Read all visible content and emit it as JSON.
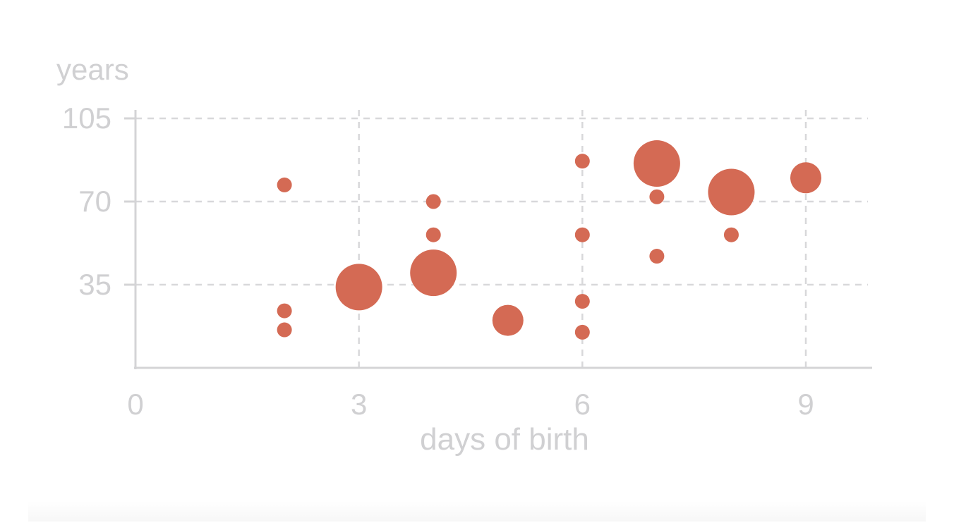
{
  "chart_data": {
    "type": "scatter",
    "title": "",
    "xlabel": "days of birth",
    "ylabel": "years",
    "xlim": [
      0,
      9.9
    ],
    "ylim": [
      0,
      105
    ],
    "x_ticks": [
      "0",
      "3",
      "6",
      "9"
    ],
    "y_ticks": [
      "35",
      "70",
      "105"
    ],
    "grid": true,
    "grid_style": "dashed",
    "legend": "none",
    "point_color": "#D46A54",
    "axis_color": "#D4D4D6",
    "label_color": "#D0D0D2",
    "series": [
      {
        "points": [
          {
            "x": 2,
            "y": 77,
            "size": 1
          },
          {
            "x": 2,
            "y": 24,
            "size": 1
          },
          {
            "x": 2,
            "y": 16,
            "size": 1
          },
          {
            "x": 3,
            "y": 34,
            "size": 4
          },
          {
            "x": 4,
            "y": 70,
            "size": 1
          },
          {
            "x": 4,
            "y": 56,
            "size": 1
          },
          {
            "x": 4,
            "y": 40,
            "size": 4
          },
          {
            "x": 5,
            "y": 20,
            "size": 2
          },
          {
            "x": 6,
            "y": 87,
            "size": 1
          },
          {
            "x": 6,
            "y": 56,
            "size": 1
          },
          {
            "x": 6,
            "y": 28,
            "size": 1
          },
          {
            "x": 6,
            "y": 15,
            "size": 1
          },
          {
            "x": 7,
            "y": 86,
            "size": 4
          },
          {
            "x": 7,
            "y": 72,
            "size": 1
          },
          {
            "x": 7,
            "y": 47,
            "size": 1
          },
          {
            "x": 8,
            "y": 74,
            "size": 4
          },
          {
            "x": 8,
            "y": 56,
            "size": 1
          },
          {
            "x": 9,
            "y": 80,
            "size": 2
          }
        ]
      }
    ]
  }
}
